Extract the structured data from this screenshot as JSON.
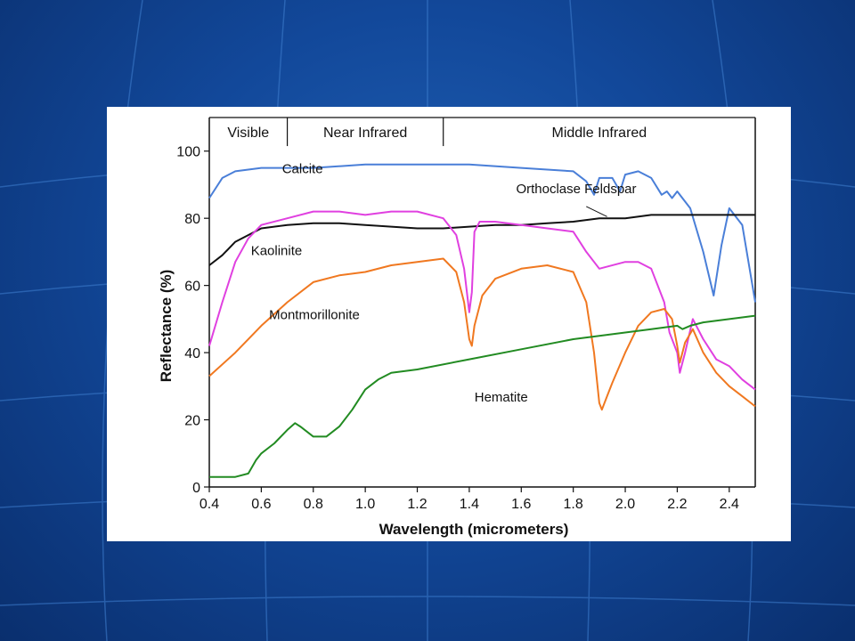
{
  "chart_data": {
    "type": "line",
    "xlabel": "Wavelength (micrometers)",
    "ylabel": "Reflectance (%)",
    "xlim": [
      0.4,
      2.5
    ],
    "ylim": [
      0,
      110
    ],
    "xticks": [
      "0.4",
      "0.6",
      "0.8",
      "1.0",
      "1.2",
      "1.4",
      "1.6",
      "1.8",
      "2.0",
      "2.2",
      "2.4"
    ],
    "yticks": [
      "0",
      "20",
      "40",
      "60",
      "80",
      "100"
    ],
    "bands": [
      {
        "label": "Visible",
        "from": 0.4,
        "to": 0.7
      },
      {
        "label": "Near Infrared",
        "from": 0.7,
        "to": 1.3
      },
      {
        "label": "Middle Infrared",
        "from": 1.3,
        "to": 2.5
      }
    ],
    "series": [
      {
        "name": "Calcite",
        "color": "#4a7fd8",
        "x": [
          0.4,
          0.45,
          0.5,
          0.6,
          0.8,
          1.0,
          1.2,
          1.4,
          1.6,
          1.8,
          1.85,
          1.88,
          1.9,
          1.95,
          1.98,
          2.0,
          2.05,
          2.1,
          2.14,
          2.16,
          2.18,
          2.2,
          2.25,
          2.3,
          2.34,
          2.37,
          2.4,
          2.45,
          2.5
        ],
        "y": [
          86,
          92,
          94,
          95,
          95,
          96,
          96,
          96,
          95,
          94,
          91,
          87,
          92,
          92,
          88,
          93,
          94,
          92,
          87,
          88,
          86,
          88,
          83,
          70,
          57,
          72,
          83,
          78,
          55
        ]
      },
      {
        "name": "Orthoclase Feldspar",
        "color": "#111111",
        "x": [
          0.4,
          0.45,
          0.5,
          0.6,
          0.7,
          0.8,
          0.9,
          1.0,
          1.1,
          1.2,
          1.3,
          1.4,
          1.5,
          1.6,
          1.7,
          1.8,
          1.9,
          2.0,
          2.1,
          2.2,
          2.3,
          2.4,
          2.5
        ],
        "y": [
          66,
          69,
          73,
          77,
          78,
          78.5,
          78.5,
          78,
          77.5,
          77,
          77,
          77.5,
          78,
          78,
          78.5,
          79,
          80,
          80,
          81,
          81,
          81,
          81,
          81
        ]
      },
      {
        "name": "Kaolinite",
        "color": "#e040e0",
        "x": [
          0.4,
          0.45,
          0.5,
          0.55,
          0.6,
          0.7,
          0.8,
          0.9,
          1.0,
          1.1,
          1.2,
          1.3,
          1.35,
          1.38,
          1.4,
          1.41,
          1.42,
          1.44,
          1.5,
          1.6,
          1.7,
          1.8,
          1.85,
          1.9,
          2.0,
          2.05,
          2.1,
          2.15,
          2.17,
          2.2,
          2.21,
          2.23,
          2.26,
          2.3,
          2.35,
          2.4,
          2.45,
          2.5
        ],
        "y": [
          42,
          55,
          67,
          74,
          78,
          80,
          82,
          82,
          81,
          82,
          82,
          80,
          75,
          65,
          52,
          58,
          76,
          79,
          79,
          78,
          77,
          76,
          70,
          65,
          67,
          67,
          65,
          55,
          46,
          40,
          34,
          40,
          50,
          44,
          38,
          36,
          32,
          29
        ]
      },
      {
        "name": "Montmorillonite",
        "color": "#f07820",
        "x": [
          0.4,
          0.5,
          0.6,
          0.7,
          0.8,
          0.9,
          1.0,
          1.1,
          1.2,
          1.3,
          1.35,
          1.38,
          1.4,
          1.41,
          1.42,
          1.45,
          1.5,
          1.6,
          1.7,
          1.8,
          1.85,
          1.88,
          1.9,
          1.91,
          1.93,
          1.95,
          2.0,
          2.05,
          2.1,
          2.15,
          2.18,
          2.2,
          2.21,
          2.23,
          2.26,
          2.3,
          2.35,
          2.4,
          2.45,
          2.5
        ],
        "y": [
          33,
          40,
          48,
          55,
          61,
          63,
          64,
          66,
          67,
          68,
          64,
          55,
          44,
          42,
          48,
          57,
          62,
          65,
          66,
          64,
          55,
          40,
          25,
          23,
          27,
          31,
          40,
          48,
          52,
          53,
          50,
          42,
          37,
          43,
          47,
          40,
          34,
          30,
          27,
          24
        ]
      },
      {
        "name": "Hematite",
        "color": "#228b22",
        "x": [
          0.4,
          0.45,
          0.5,
          0.55,
          0.58,
          0.6,
          0.65,
          0.7,
          0.73,
          0.75,
          0.8,
          0.85,
          0.9,
          0.95,
          1.0,
          1.05,
          1.1,
          1.2,
          1.4,
          1.6,
          1.8,
          2.0,
          2.1,
          2.2,
          2.22,
          2.25,
          2.3,
          2.4,
          2.5
        ],
        "y": [
          3,
          3,
          3,
          4,
          8,
          10,
          13,
          17,
          19,
          18,
          15,
          15,
          18,
          23,
          29,
          32,
          34,
          35,
          38,
          41,
          44,
          46,
          47,
          48,
          47,
          48,
          49,
          50,
          51
        ]
      }
    ],
    "annotations": [
      {
        "text": "Calcite",
        "x": 0.68,
        "y": 93.5
      },
      {
        "text": "Orthoclase Feldspar",
        "x": 1.58,
        "y": 87.5
      },
      {
        "text": "Kaolinite",
        "x": 0.56,
        "y": 69
      },
      {
        "text": "Montmorillonite",
        "x": 0.63,
        "y": 50
      },
      {
        "text": "Hematite",
        "x": 1.42,
        "y": 25.5
      }
    ]
  }
}
